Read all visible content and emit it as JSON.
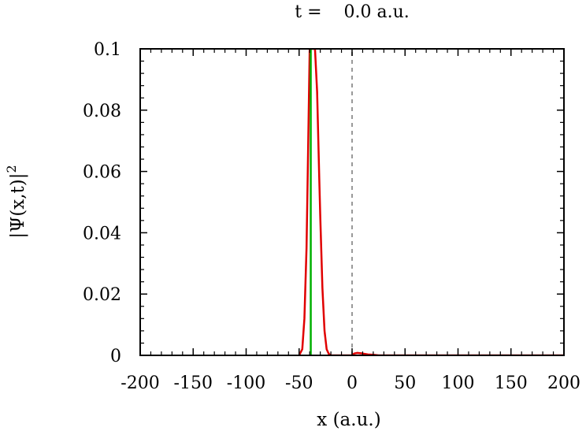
{
  "chart_data": {
    "type": "line",
    "title": "t =    0.0 a.u.",
    "xlabel": "x (a.u.)",
    "ylabel": "|Ψ(x,t)|",
    "ylabel_exponent": "2",
    "xlim": [
      -200,
      200
    ],
    "ylim": [
      0,
      0.1
    ],
    "xticks": [
      -200,
      -150,
      -100,
      -50,
      0,
      50,
      100,
      150,
      200
    ],
    "xtick_labels": [
      "-200",
      "-150",
      "-100",
      "-50",
      "0",
      "50",
      "100",
      "150",
      "200"
    ],
    "yticks": [
      0,
      0.02,
      0.04,
      0.06,
      0.08,
      0.1
    ],
    "ytick_labels": [
      "0",
      "0.02",
      "0.04",
      "0.06",
      "0.08",
      "0.1"
    ],
    "grid": false,
    "legend": "none",
    "series": [
      {
        "color": "#e00000",
        "x": [
          -50,
          -47,
          -45,
          -43,
          -42,
          -41,
          -40,
          -39,
          -38,
          -37,
          -35,
          -33,
          -31,
          -30,
          -28,
          -26,
          -24,
          -22,
          -20,
          -15,
          -10,
          -5,
          0,
          2,
          5,
          10,
          15,
          20,
          25,
          50,
          100,
          150,
          200
        ],
        "y": [
          0,
          0.002,
          0.012,
          0.035,
          0.056,
          0.078,
          0.1,
          0.1,
          0.1,
          0.1,
          0.1,
          0.086,
          0.058,
          0.045,
          0.022,
          0.008,
          0.002,
          0.0005,
          0,
          0,
          0,
          0,
          0,
          0.0006,
          0.0008,
          0.0006,
          0.0003,
          0.0002,
          0,
          0,
          0,
          0,
          0
        ]
      },
      {
        "color": "#00b000",
        "x": [
          -39,
          -39
        ],
        "y": [
          0,
          0.1
        ]
      },
      {
        "color": "#999999",
        "dashed": true,
        "x": [
          0,
          0
        ],
        "y": [
          0,
          0.1
        ]
      }
    ]
  }
}
